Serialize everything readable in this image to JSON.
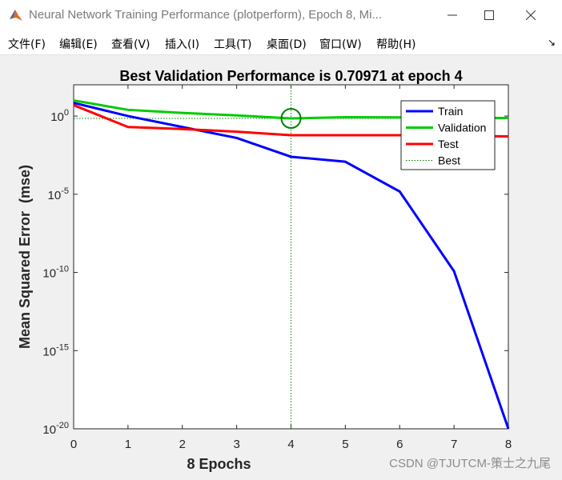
{
  "window": {
    "title": "Neural Network Training Performance (plotperform), Epoch 8, Mi...",
    "controls": [
      "minimize",
      "maximize",
      "close"
    ]
  },
  "menu": {
    "items": [
      "文件(F)",
      "编辑(E)",
      "查看(V)",
      "插入(I)",
      "工具(T)",
      "桌面(D)",
      "窗口(W)",
      "帮助(H)"
    ]
  },
  "watermark": "CSDN @TJUTCM-策士之九尾",
  "chart_data": {
    "type": "line",
    "title": "Best Validation Performance is 0.70971 at epoch 4",
    "xlabel": "8 Epochs",
    "ylabel": "Mean Squared Error  (mse)",
    "yscale": "log",
    "xlim": [
      0,
      8
    ],
    "ylim": [
      1e-20,
      100.0
    ],
    "x_ticks": [
      "0",
      "1",
      "2",
      "3",
      "4",
      "5",
      "6",
      "7",
      "8"
    ],
    "y_ticks": [
      {
        "base": "10",
        "exp": "0",
        "value": 1
      },
      {
        "base": "10",
        "exp": "-5",
        "value": 1e-05
      },
      {
        "base": "10",
        "exp": "-10",
        "value": 1e-10
      },
      {
        "base": "10",
        "exp": "-15",
        "value": 1e-15
      },
      {
        "base": "10",
        "exp": "-20",
        "value": 1e-20
      }
    ],
    "x": [
      0,
      1,
      2,
      3,
      4,
      5,
      6,
      7,
      8
    ],
    "series": [
      {
        "name": "Train",
        "color": "#0000ff",
        "values": [
          7,
          1,
          0.2,
          0.04,
          0.0025,
          0.0012,
          1.5e-05,
          1.2e-10,
          1e-20
        ]
      },
      {
        "name": "Validation",
        "color": "#00cc00",
        "values": [
          10,
          2.5,
          1.6,
          1.1,
          0.70971,
          0.85,
          0.82,
          0.78,
          0.75
        ]
      },
      {
        "name": "Test",
        "color": "#ff0000",
        "values": [
          5,
          0.2,
          0.15,
          0.1,
          0.06,
          0.06,
          0.06,
          0.055,
          0.05
        ]
      }
    ],
    "best": {
      "name": "Best",
      "epoch": 4,
      "value": 0.70971,
      "color": "#008000",
      "style": "dotted"
    },
    "legend_position": "top-right",
    "grid": false
  }
}
